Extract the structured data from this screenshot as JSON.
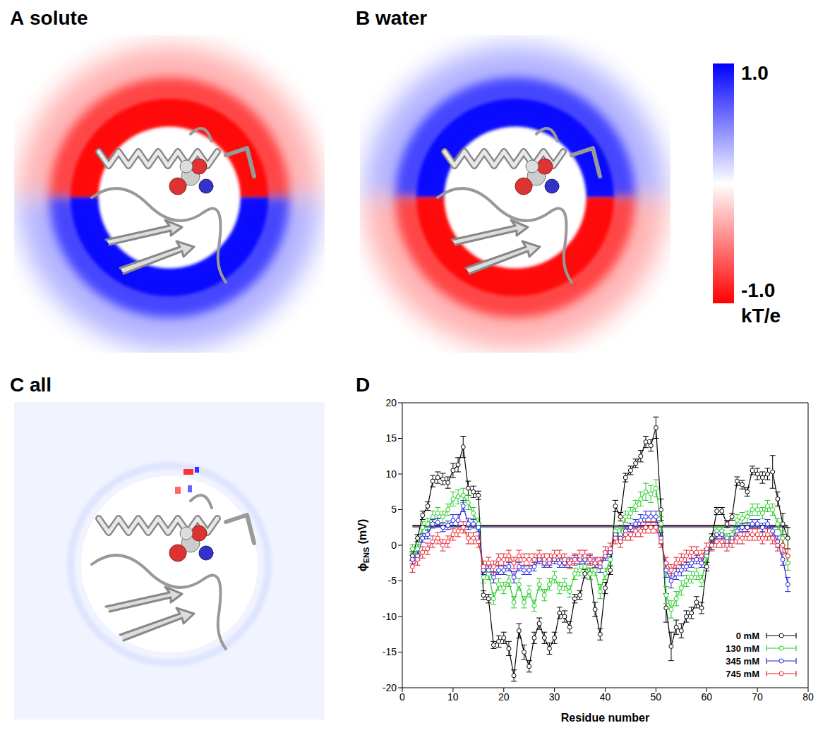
{
  "panels": [
    {
      "letter": "A",
      "title": "solute"
    },
    {
      "letter": "B",
      "title": "water"
    },
    {
      "letter": "C",
      "title": "all"
    }
  ],
  "colorbar": {
    "range": [
      -1.0,
      1.0
    ],
    "ticks": [
      {
        "value": 1.0,
        "label": "1.0"
      },
      {
        "value": -1.0,
        "label": "-1.0"
      }
    ],
    "label": "kT/e"
  },
  "chart_data": {
    "type": "line",
    "panel": "D",
    "xlabel": "Residue number",
    "ylabel": "ϕENS (mV)",
    "xlim": [
      0,
      80
    ],
    "xticks": [
      0,
      10,
      20,
      30,
      40,
      50,
      60,
      70,
      80
    ],
    "ylim": [
      -20,
      20
    ],
    "yticks": [
      -20,
      -15,
      -10,
      -5,
      0,
      5,
      10,
      15,
      20
    ],
    "grid": false,
    "legend": "lower right",
    "marker": "circle",
    "x": [
      2,
      3,
      4,
      5,
      6,
      7,
      8,
      9,
      10,
      11,
      12,
      13,
      14,
      15,
      16,
      17,
      18,
      19,
      20,
      21,
      22,
      23,
      24,
      25,
      26,
      27,
      28,
      29,
      30,
      31,
      32,
      33,
      34,
      35,
      36,
      37,
      38,
      39,
      40,
      41,
      42,
      43,
      44,
      45,
      46,
      47,
      48,
      49,
      50,
      51,
      52,
      53,
      54,
      55,
      56,
      57,
      58,
      59,
      60,
      61,
      62,
      63,
      64,
      65,
      66,
      67,
      68,
      69,
      70,
      71,
      72,
      73,
      74,
      75,
      76
    ],
    "series": [
      {
        "name": "0 mM",
        "color": "#000000",
        "mean": 2.8,
        "values": [
          -1.5,
          1,
          4.2,
          5.5,
          9,
          9.5,
          9.3,
          8.8,
          10.5,
          11.3,
          13.8,
          8,
          7.5,
          7,
          -7,
          -7.5,
          -14,
          -13.5,
          -13,
          -14.5,
          -18.3,
          -12,
          -15,
          -17,
          -13,
          -11,
          -13,
          -14.5,
          -13,
          -9.5,
          -10,
          -11.5,
          -7.5,
          -7,
          -4,
          -4,
          -9,
          -12.5,
          -6,
          -3.5,
          5.5,
          4,
          9.5,
          10.5,
          11.5,
          12.5,
          14.5,
          14,
          16.5,
          5,
          -8.8,
          -14.2,
          -11.5,
          -12,
          -10,
          -9.5,
          -8,
          -8.8,
          -3,
          1,
          4.8,
          4.8,
          3,
          4,
          9,
          8.5,
          7.5,
          10.5,
          10,
          9.5,
          10,
          10.3,
          6.5,
          3,
          1
        ],
        "errors": [
          0.6,
          0.5,
          0.6,
          0.6,
          0.8,
          0.8,
          0.8,
          0.8,
          1.0,
          1.0,
          1.5,
          1.0,
          0.8,
          0.6,
          0.6,
          0.6,
          0.5,
          0.8,
          0.8,
          1.0,
          0.8,
          1.0,
          1.0,
          0.8,
          0.8,
          0.8,
          0.8,
          0.8,
          0.8,
          0.8,
          0.8,
          0.8,
          0.6,
          0.6,
          0.6,
          0.8,
          1.0,
          0.8,
          0.8,
          0.6,
          0.8,
          0.6,
          0.6,
          0.6,
          0.6,
          0.8,
          0.8,
          0.8,
          1.5,
          1.5,
          2.0,
          2.0,
          1.0,
          1.0,
          0.8,
          0.8,
          0.8,
          0.8,
          0.6,
          0.6,
          0.5,
          0.5,
          0.5,
          0.5,
          0.6,
          0.6,
          0.6,
          0.6,
          0.8,
          0.8,
          0.8,
          2.3,
          1.0,
          1.5,
          1.5
        ]
      },
      {
        "name": "130 mM",
        "color": "#22cc22",
        "mean": 2.5,
        "values": [
          -0.5,
          -0.5,
          2.5,
          3,
          4,
          4.5,
          4,
          5,
          6.5,
          6.8,
          7,
          6,
          4.5,
          3,
          -4.5,
          -4,
          -7.5,
          -5.5,
          -6,
          -5,
          -8,
          -5.5,
          -8,
          -6.5,
          -8.5,
          -5.5,
          -7,
          -5.5,
          -4.5,
          -6,
          -5.5,
          -6.5,
          -4,
          -3.5,
          -3,
          -4,
          -3.5,
          -6.5,
          -4,
          -2,
          2,
          1.5,
          4,
          4.5,
          5.5,
          6.5,
          7.5,
          7.2,
          8,
          3,
          -7,
          -9,
          -7.5,
          -6,
          -5,
          -4.5,
          -4,
          -5,
          -1.5,
          0,
          2,
          2,
          1,
          1.5,
          3.5,
          3.8,
          4,
          5,
          5,
          4.5,
          5.5,
          5,
          3,
          1,
          -2.5
        ],
        "errors": [
          0.6,
          0.6,
          0.8,
          0.8,
          0.8,
          0.8,
          0.8,
          0.8,
          1,
          1,
          1,
          1,
          0.8,
          0.8,
          0.8,
          0.8,
          0.8,
          0.8,
          0.8,
          0.8,
          0.8,
          0.8,
          0.8,
          0.8,
          0.8,
          0.8,
          0.8,
          0.8,
          0.8,
          0.8,
          0.8,
          0.8,
          0.8,
          0.8,
          0.8,
          0.8,
          0.8,
          1,
          0.8,
          0.8,
          0.8,
          0.8,
          0.8,
          0.8,
          0.8,
          1,
          1.2,
          1.2,
          1.2,
          1,
          1.2,
          1.2,
          1,
          1,
          0.8,
          0.8,
          0.8,
          0.8,
          0.8,
          0.6,
          0.6,
          0.6,
          0.6,
          0.6,
          0.8,
          0.8,
          0.8,
          0.8,
          0.8,
          0.8,
          0.8,
          0.8,
          0.8,
          1,
          1
        ]
      },
      {
        "name": "345 mM",
        "color": "#2222dd",
        "mean": 2.6,
        "values": [
          -2,
          -1.5,
          1,
          1.5,
          3,
          3.2,
          2.5,
          2.8,
          3.5,
          3.5,
          5.5,
          3,
          3,
          2.5,
          -3.5,
          -3.5,
          -4.5,
          -3.5,
          -3.5,
          -3,
          -4.5,
          -3,
          -3.5,
          -3.5,
          -3,
          -2,
          -2.5,
          -2.5,
          -2,
          -2.5,
          -2.5,
          -2.5,
          -2,
          -2,
          -2,
          -2,
          -2.5,
          -3,
          -1.5,
          -1,
          1.5,
          1,
          2,
          2.5,
          3,
          3.5,
          4,
          4,
          4,
          1,
          -3.5,
          -5,
          -4,
          -3.5,
          -3,
          -2.5,
          -2,
          -2.5,
          -1,
          0,
          1.5,
          1.5,
          0.5,
          1,
          2,
          2.5,
          2.5,
          3,
          3,
          2.5,
          3,
          2,
          0.5,
          -2,
          -5.5
        ],
        "errors": [
          0.6,
          0.6,
          0.6,
          0.6,
          0.6,
          0.6,
          0.6,
          0.6,
          0.8,
          0.8,
          0.8,
          0.8,
          0.6,
          0.6,
          0.6,
          0.6,
          0.8,
          0.6,
          0.6,
          0.6,
          0.8,
          0.6,
          0.6,
          0.6,
          0.6,
          0.6,
          0.6,
          0.6,
          0.6,
          0.6,
          0.6,
          0.6,
          0.6,
          0.6,
          0.6,
          0.6,
          0.6,
          0.8,
          0.6,
          0.6,
          0.6,
          0.6,
          0.6,
          0.6,
          0.6,
          0.8,
          0.8,
          0.8,
          0.8,
          0.8,
          1,
          1,
          0.8,
          0.8,
          0.6,
          0.6,
          0.6,
          0.6,
          0.6,
          0.6,
          0.6,
          0.6,
          0.6,
          0.6,
          0.6,
          0.6,
          0.6,
          0.6,
          0.6,
          0.6,
          0.6,
          0.6,
          0.8,
          0.8,
          1
        ]
      },
      {
        "name": "745 mM",
        "color": "#e8202a",
        "mean": 2.7,
        "values": [
          -3,
          -2,
          -1,
          -0.5,
          0.5,
          1,
          0,
          0.5,
          1.5,
          2,
          2.5,
          1,
          1,
          0.5,
          -3,
          -2.5,
          -3,
          -2,
          -2,
          -1.5,
          -2.5,
          -1.5,
          -2,
          -2,
          -2,
          -1.5,
          -2,
          -2,
          -1.5,
          -1.5,
          -2,
          -2.5,
          -2,
          -1.5,
          -1.5,
          -2,
          -2.5,
          -2.5,
          -1,
          -0.5,
          1,
          0.5,
          1.5,
          1.5,
          2,
          2,
          2.5,
          2.5,
          2.5,
          0.5,
          -2.5,
          -3.5,
          -2.5,
          -2,
          -1.5,
          -1,
          -1,
          -1.5,
          -0.5,
          0,
          0.5,
          0.5,
          0,
          0.5,
          1,
          1,
          1.5,
          1.5,
          1.5,
          1,
          1.5,
          1,
          0,
          0,
          -1.5
        ],
        "errors": [
          0.8,
          0.8,
          0.8,
          0.8,
          0.8,
          0.8,
          0.8,
          0.8,
          0.8,
          0.8,
          0.8,
          0.8,
          0.8,
          0.8,
          0.8,
          0.8,
          0.8,
          0.8,
          0.8,
          0.8,
          0.8,
          0.8,
          0.8,
          0.8,
          0.8,
          0.8,
          0.8,
          0.8,
          0.8,
          0.8,
          0.8,
          0.8,
          0.8,
          0.8,
          0.8,
          0.8,
          0.8,
          0.8,
          0.8,
          0.8,
          0.8,
          0.8,
          0.8,
          0.8,
          0.8,
          0.8,
          0.8,
          0.8,
          0.8,
          0.8,
          0.8,
          0.8,
          0.8,
          0.8,
          0.8,
          0.8,
          0.8,
          0.8,
          0.8,
          0.8,
          0.8,
          0.8,
          0.8,
          0.8,
          0.8,
          0.8,
          0.8,
          0.8,
          0.8,
          0.8,
          0.8,
          0.8,
          0.8,
          1,
          1
        ]
      }
    ]
  }
}
